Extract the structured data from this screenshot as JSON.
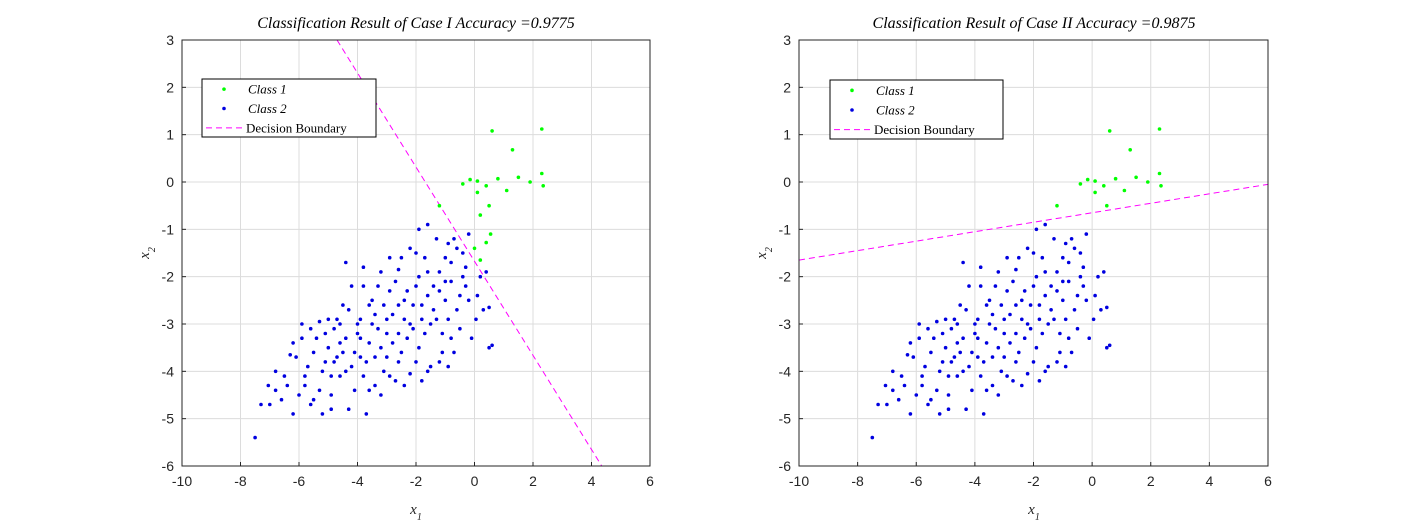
{
  "colors": {
    "class1": "#00ff00",
    "class2": "#0000e0",
    "boundary": "#ff00ff",
    "grid": "#dcdcdc",
    "axis": "#262626"
  },
  "chart_data": [
    {
      "type": "scatter",
      "title": "Classification Result of Case I  Accuracy =0.9775",
      "xlabel": "x1",
      "ylabel": "x2",
      "xlim": [
        -10,
        6
      ],
      "ylim": [
        -6,
        3
      ],
      "xticks": [
        -10,
        -8,
        -6,
        -4,
        -2,
        0,
        2,
        4,
        6
      ],
      "yticks": [
        -6,
        -5,
        -4,
        -3,
        -2,
        -1,
        0,
        1,
        2,
        3
      ],
      "grid": true,
      "legend_position": "top-left",
      "legend": [
        "Class 1",
        "Class 2",
        "Decision Boundary"
      ],
      "series": [
        {
          "name": "Class 1",
          "color": "#00ff00",
          "points": [
            [
              0.6,
              1.08
            ],
            [
              2.3,
              1.12
            ],
            [
              1.3,
              0.68
            ],
            [
              -0.4,
              -0.04
            ],
            [
              -0.15,
              0.05
            ],
            [
              0.1,
              0.02
            ],
            [
              0.4,
              -0.08
            ],
            [
              0.5,
              -0.5
            ],
            [
              0.8,
              0.07
            ],
            [
              1.1,
              -0.18
            ],
            [
              1.5,
              0.1
            ],
            [
              1.9,
              0.0
            ],
            [
              2.3,
              0.18
            ],
            [
              2.35,
              -0.08
            ],
            [
              0.1,
              -0.22
            ],
            [
              0.2,
              -0.7
            ],
            [
              0.55,
              -1.1
            ],
            [
              0.4,
              -1.28
            ],
            [
              -1.2,
              -0.5
            ],
            [
              0.0,
              -1.4
            ],
            [
              0.2,
              -1.65
            ]
          ]
        },
        {
          "name": "Class 2",
          "color": "#0000e0",
          "points": []
        }
      ],
      "boundary": {
        "name": "Decision Boundary",
        "from": [
          -4.7,
          3.0
        ],
        "to": [
          4.35,
          -6.0
        ]
      }
    },
    {
      "type": "scatter",
      "title": "Classification Result of Case II  Accuracy =0.9875",
      "xlabel": "x1",
      "ylabel": "x2",
      "xlim": [
        -10,
        6
      ],
      "ylim": [
        -6,
        3
      ],
      "xticks": [
        -10,
        -8,
        -6,
        -4,
        -2,
        0,
        2,
        4,
        6
      ],
      "yticks": [
        -6,
        -5,
        -4,
        -3,
        -2,
        -1,
        0,
        1,
        2,
        3
      ],
      "grid": true,
      "legend_position": "top-left",
      "legend": [
        "Class 1",
        "Class 2",
        "Decision Boundary"
      ],
      "series": [
        {
          "name": "Class 1",
          "color": "#00ff00",
          "points": [
            [
              0.6,
              1.08
            ],
            [
              2.3,
              1.12
            ],
            [
              1.3,
              0.68
            ],
            [
              -0.4,
              -0.04
            ],
            [
              -0.15,
              0.05
            ],
            [
              0.1,
              0.02
            ],
            [
              0.4,
              -0.08
            ],
            [
              0.5,
              -0.5
            ],
            [
              0.8,
              0.07
            ],
            [
              1.1,
              -0.18
            ],
            [
              1.5,
              0.1
            ],
            [
              1.9,
              0.0
            ],
            [
              2.3,
              0.18
            ],
            [
              2.35,
              -0.08
            ],
            [
              0.1,
              -0.22
            ],
            [
              -1.2,
              -0.5
            ]
          ]
        },
        {
          "name": "Class 2",
          "color": "#0000e0",
          "points": []
        }
      ],
      "boundary": {
        "name": "Decision Boundary",
        "from": [
          -10,
          -1.65
        ],
        "to": [
          6,
          -0.05
        ]
      }
    }
  ],
  "class2_points": [
    [
      -7.5,
      -5.4
    ],
    [
      -7.3,
      -4.7
    ],
    [
      -7.05,
      -4.3
    ],
    [
      -6.6,
      -4.6
    ],
    [
      -6.2,
      -4.9
    ],
    [
      -6.5,
      -4.1
    ],
    [
      -6.3,
      -3.65
    ],
    [
      -5.9,
      -3.0
    ],
    [
      -5.6,
      -3.1
    ],
    [
      -5.4,
      -3.3
    ],
    [
      -5.0,
      -3.5
    ],
    [
      -4.8,
      -3.8
    ],
    [
      -4.6,
      -4.1
    ],
    [
      -4.4,
      -3.3
    ],
    [
      -4.1,
      -3.6
    ],
    [
      -3.9,
      -2.9
    ],
    [
      -3.6,
      -3.4
    ],
    [
      -3.3,
      -3.1
    ],
    [
      -3.0,
      -3.7
    ],
    [
      -2.8,
      -2.8
    ],
    [
      -2.6,
      -3.2
    ],
    [
      -2.4,
      -2.5
    ],
    [
      -2.2,
      -3.0
    ],
    [
      -2.0,
      -2.2
    ],
    [
      -1.8,
      -2.6
    ],
    [
      -1.6,
      -1.9
    ],
    [
      -1.4,
      -2.7
    ],
    [
      -1.2,
      -2.3
    ],
    [
      -1.0,
      -1.6
    ],
    [
      -0.8,
      -2.1
    ],
    [
      -0.6,
      -1.4
    ],
    [
      -0.4,
      -2.0
    ],
    [
      -0.2,
      -2.5
    ],
    [
      0.1,
      -2.4
    ],
    [
      0.3,
      -2.7
    ],
    [
      0.5,
      -2.65
    ],
    [
      0.5,
      -3.5
    ],
    [
      0.6,
      -3.45
    ],
    [
      -5.8,
      -4.3
    ],
    [
      -5.5,
      -4.6
    ],
    [
      -5.2,
      -4.9
    ],
    [
      -4.9,
      -4.5
    ],
    [
      -4.3,
      -4.8
    ],
    [
      -3.7,
      -4.9
    ],
    [
      -3.4,
      -4.3
    ],
    [
      -3.1,
      -4.0
    ],
    [
      -2.7,
      -4.2
    ],
    [
      -2.2,
      -4.05
    ],
    [
      -1.8,
      -4.2
    ],
    [
      -1.5,
      -3.9
    ],
    [
      -1.1,
      -3.6
    ],
    [
      -0.8,
      -3.3
    ],
    [
      -0.5,
      -3.1
    ],
    [
      -4.4,
      -1.7
    ],
    [
      -3.8,
      -1.8
    ],
    [
      -3.2,
      -1.9
    ],
    [
      -2.6,
      -1.85
    ],
    [
      -2.2,
      -1.4
    ],
    [
      -1.6,
      -0.9
    ],
    [
      -1.9,
      -1.0
    ],
    [
      -0.7,
      -1.2
    ],
    [
      -6.8,
      -4.0
    ],
    [
      -6.1,
      -3.7
    ],
    [
      -5.3,
      -2.95
    ],
    [
      -4.7,
      -2.9
    ],
    [
      -4.2,
      -2.2
    ],
    [
      -3.5,
      -2.5
    ],
    [
      -2.9,
      -2.3
    ],
    [
      -2.0,
      -1.5
    ],
    [
      -1.3,
      -1.2
    ],
    [
      -0.3,
      -1.8
    ],
    [
      0.05,
      -2.9
    ],
    [
      -0.1,
      -3.3
    ],
    [
      -0.9,
      -2.9
    ],
    [
      -1.7,
      -3.2
    ],
    [
      -2.5,
      -3.6
    ],
    [
      -3.8,
      -4.1
    ],
    [
      -4.9,
      -4.1
    ],
    [
      -5.7,
      -3.9
    ],
    [
      -6.0,
      -4.5
    ],
    [
      -6.4,
      -4.3
    ],
    [
      -5.1,
      -3.8
    ],
    [
      -4.5,
      -3.6
    ],
    [
      -3.9,
      -3.3
    ],
    [
      -3.2,
      -3.5
    ],
    [
      -2.3,
      -3.3
    ],
    [
      -1.5,
      -3.0
    ],
    [
      -1.0,
      -2.5
    ],
    [
      -0.5,
      -2.4
    ],
    [
      -2.7,
      -2.1
    ],
    [
      -3.6,
      -2.6
    ],
    [
      -4.0,
      -3.0
    ],
    [
      -4.8,
      -3.1
    ],
    [
      -5.5,
      -3.6
    ],
    [
      -1.9,
      -2.0
    ],
    [
      -1.2,
      -1.9
    ],
    [
      -0.8,
      -1.7
    ],
    [
      -2.4,
      -2.9
    ],
    [
      -3.0,
      -2.9
    ],
    [
      -4.2,
      -3.9
    ],
    [
      -6.2,
      -3.4
    ],
    [
      -5.9,
      -3.3
    ],
    [
      -4.6,
      -3.0
    ],
    [
      -3.4,
      -2.8
    ],
    [
      -2.1,
      -2.6
    ],
    [
      -1.4,
      -2.2
    ],
    [
      -0.6,
      -2.7
    ],
    [
      -3.7,
      -3.8
    ],
    [
      -2.9,
      -4.1
    ],
    [
      -4.1,
      -4.4
    ],
    [
      -5.3,
      -4.4
    ],
    [
      -6.8,
      -4.4
    ],
    [
      -7.0,
      -4.7
    ],
    [
      -4.3,
      -2.7
    ],
    [
      -3.3,
      -2.2
    ],
    [
      -2.5,
      -1.6
    ],
    [
      -1.7,
      -1.6
    ],
    [
      -0.9,
      -1.3
    ],
    [
      -2.0,
      -3.8
    ],
    [
      -1.2,
      -3.8
    ],
    [
      -3.5,
      -3.0
    ],
    [
      -4.6,
      -3.4
    ],
    [
      -5.1,
      -3.2
    ],
    [
      -2.8,
      -3.4
    ],
    [
      -3.9,
      -3.7
    ],
    [
      -4.4,
      -4.0
    ],
    [
      -1.6,
      -2.4
    ],
    [
      -1.0,
      -2.1
    ],
    [
      -0.4,
      -1.5
    ],
    [
      -0.2,
      -1.1
    ],
    [
      -3.1,
      -2.6
    ],
    [
      -2.3,
      -2.3
    ],
    [
      -1.3,
      -2.9
    ],
    [
      -2.6,
      -3.8
    ],
    [
      -3.6,
      -4.4
    ],
    [
      -4.9,
      -4.8
    ],
    [
      -5.6,
      -4.7
    ],
    [
      -1.9,
      -3.5
    ],
    [
      -0.7,
      -3.6
    ],
    [
      -0.3,
      -2.2
    ],
    [
      0.2,
      -2.0
    ],
    [
      0.4,
      -1.9
    ],
    [
      -2.9,
      -1.6
    ],
    [
      -3.8,
      -2.2
    ],
    [
      -4.5,
      -2.6
    ],
    [
      -5.0,
      -2.9
    ],
    [
      -3.0,
      -3.2
    ],
    [
      -2.1,
      -3.1
    ],
    [
      -1.1,
      -3.2
    ],
    [
      -1.8,
      -2.9
    ],
    [
      -2.6,
      -2.6
    ],
    [
      -3.4,
      -3.7
    ],
    [
      -4.0,
      -3.2
    ],
    [
      -4.7,
      -3.7
    ],
    [
      -5.2,
      -4.0
    ],
    [
      -5.8,
      -4.1
    ],
    [
      -3.2,
      -4.5
    ],
    [
      -2.4,
      -4.3
    ],
    [
      -1.6,
      -4.0
    ],
    [
      -0.9,
      -3.9
    ]
  ]
}
